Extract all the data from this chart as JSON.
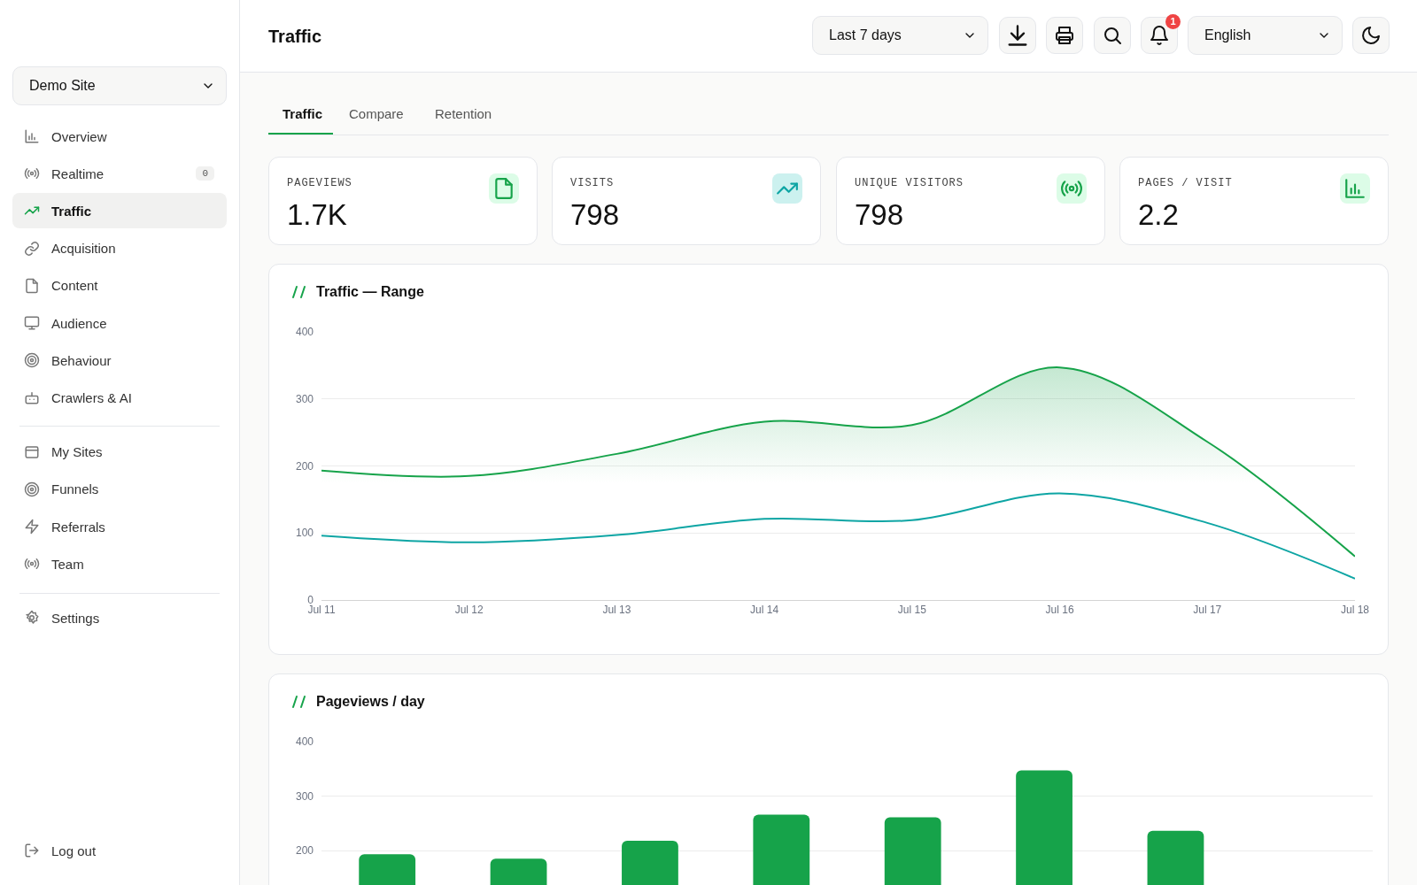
{
  "chart_data": [
    {
      "type": "other",
      "title": "Traffic",
      "annotations": [
        "Last 7 days",
        "1",
        "English"
      ]
    },
    {
      "type": "other",
      "annotations": [
        "Demo Site",
        "Overview",
        "Realtime",
        "0",
        "Traffic",
        "Acquisition",
        "Content",
        "Audience",
        "Behaviour",
        "Crawlers & AI",
        "My Sites",
        "Funnels",
        "Referrals",
        "Team",
        "Settings",
        "Log out"
      ]
    },
    {
      "type": "other",
      "annotations": [
        "Traffic",
        "Compare",
        "Retention"
      ]
    },
    {
      "type": "other",
      "title": "PAGEVIEWS",
      "subtitle": "1.7K"
    },
    {
      "type": "other",
      "title": "VISITS",
      "subtitle": "798"
    },
    {
      "type": "other",
      "title": "UNIQUE VISITORS",
      "subtitle": "798"
    },
    {
      "type": "other",
      "title": "PAGES / VISIT",
      "subtitle": "2.2"
    },
    {
      "type": "line",
      "title": "Traffic — Range",
      "categories": [
        "Jul 11",
        "Jul 12",
        "Jul 13",
        "Jul 14",
        "Jul 15",
        "Jul 16",
        "Jul 17",
        "Jul 18"
      ],
      "series": [
        {
          "type": "area",
          "color": "#16a34a",
          "values": [
            193,
            185,
            218,
            266,
            261,
            347,
            236,
            65
          ]
        },
        {
          "type": "line",
          "color": "#0ea5a4",
          "values": [
            96,
            86,
            97,
            121,
            119,
            159,
            115,
            32
          ]
        }
      ],
      "ylim": [
        0,
        400
      ],
      "yticks": [
        0,
        100,
        200,
        300,
        400
      ],
      "grid": "y"
    },
    {
      "type": "bar",
      "title": "Pageviews / day",
      "categories": [
        null,
        null,
        null,
        null,
        null,
        null,
        null,
        null
      ],
      "values": [
        193,
        185,
        218,
        266,
        261,
        347,
        236,
        null
      ],
      "color": "#16a34a",
      "ylim": [
        0,
        400
      ],
      "yticks": [
        200,
        300,
        400
      ],
      "grid": "y"
    }
  ]
}
